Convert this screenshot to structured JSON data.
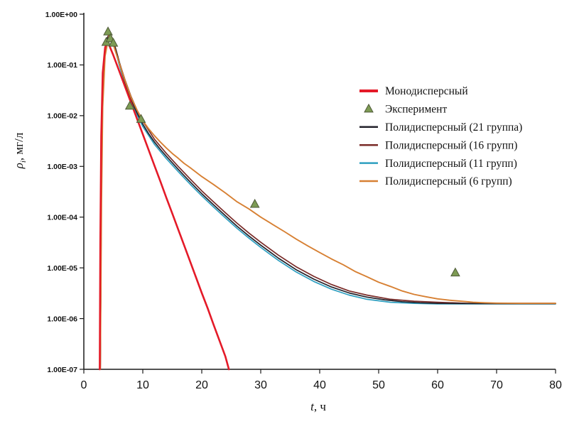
{
  "figure": {
    "background": "#ffffff"
  },
  "chart_data": {
    "type": "line",
    "title": "",
    "xlabel": {
      "main": "t",
      "sub": "",
      "rest": ", ч"
    },
    "ylabel": {
      "main": "ρ",
      "sub": "i",
      "rest": ", мг/л"
    },
    "xlim": [
      0,
      80
    ],
    "ylog_range": [
      -7,
      0
    ],
    "grid": false,
    "legend_position": "inside-upper-right",
    "axis_color": "#1a1a1a",
    "x_ticks": [
      0,
      10,
      20,
      30,
      40,
      50,
      60,
      70,
      80
    ],
    "y_ticks": [
      {
        "label": "1.00E+00",
        "value": 1
      },
      {
        "label": "1.00E-01",
        "value": 0.1
      },
      {
        "label": "1.00E-02",
        "value": 0.01
      },
      {
        "label": "1.00E-03",
        "value": 0.001
      },
      {
        "label": "1.00E-04",
        "value": 0.0001
      },
      {
        "label": "1.00E-05",
        "value": 1e-05
      },
      {
        "label": "1.00E-06",
        "value": 1e-06
      },
      {
        "label": "1.00E-07",
        "value": 1e-07
      }
    ],
    "series": [
      {
        "id": "poly11",
        "name": "Полидисперсный (11 групп)",
        "color": "#2e9fc0",
        "width": 1.7,
        "points": [
          [
            2.8,
            1e-07
          ],
          [
            2.95,
            0.00013
          ],
          [
            3.1,
            0.009
          ],
          [
            3.4,
            0.095
          ],
          [
            3.8,
            0.29
          ],
          [
            4.4,
            0.41
          ],
          [
            4.9,
            0.3
          ],
          [
            5.4,
            0.19
          ],
          [
            6,
            0.1
          ],
          [
            7,
            0.041
          ],
          [
            8,
            0.019
          ],
          [
            9,
            0.0105
          ],
          [
            10,
            0.0061
          ],
          [
            12,
            0.0027
          ],
          [
            14,
            0.00142
          ],
          [
            16,
            0.00079
          ],
          [
            18,
            0.00045
          ],
          [
            20,
            0.000262
          ],
          [
            22,
            0.000158
          ],
          [
            24,
            9.7e-05
          ],
          [
            26,
            6e-05
          ],
          [
            28,
            3.85e-05
          ],
          [
            30,
            2.53e-05
          ],
          [
            33,
            1.4e-05
          ],
          [
            36,
            8.3e-06
          ],
          [
            39,
            5.4e-06
          ],
          [
            42,
            3.8e-06
          ],
          [
            45,
            2.9e-06
          ],
          [
            48,
            2.4e-06
          ],
          [
            52,
            2.1e-06
          ],
          [
            56,
            2e-06
          ],
          [
            60,
            1.95e-06
          ],
          [
            65,
            1.95e-06
          ],
          [
            70,
            1.95e-06
          ],
          [
            75,
            1.95e-06
          ],
          [
            80,
            1.95e-06
          ]
        ]
      },
      {
        "id": "poly16",
        "name": "Полидисперсный (16 групп)",
        "color": "#7a2b28",
        "width": 1.7,
        "points": [
          [
            2.8,
            1e-07
          ],
          [
            2.95,
            0.00017
          ],
          [
            3.1,
            0.011
          ],
          [
            3.4,
            0.11
          ],
          [
            3.8,
            0.31
          ],
          [
            4.4,
            0.43
          ],
          [
            4.9,
            0.32
          ],
          [
            5.4,
            0.21
          ],
          [
            6,
            0.115
          ],
          [
            7,
            0.05
          ],
          [
            8,
            0.024
          ],
          [
            9,
            0.013
          ],
          [
            10,
            0.0078
          ],
          [
            12,
            0.0034
          ],
          [
            14,
            0.0018
          ],
          [
            16,
            0.001
          ],
          [
            18,
            0.00057
          ],
          [
            20,
            0.00033
          ],
          [
            22,
            0.0002
          ],
          [
            24,
            0.000122
          ],
          [
            26,
            7.55e-05
          ],
          [
            28,
            4.85e-05
          ],
          [
            30,
            3.2e-05
          ],
          [
            33,
            1.78e-05
          ],
          [
            36,
            1.05e-05
          ],
          [
            39,
            6.8e-06
          ],
          [
            42,
            4.7e-06
          ],
          [
            45,
            3.5e-06
          ],
          [
            48,
            2.9e-06
          ],
          [
            52,
            2.4e-06
          ],
          [
            56,
            2.2e-06
          ],
          [
            60,
            2.1e-06
          ],
          [
            65,
            2e-06
          ],
          [
            70,
            2e-06
          ],
          [
            75,
            2e-06
          ],
          [
            80,
            2e-06
          ]
        ]
      },
      {
        "id": "poly21",
        "name": "Полидисперсный (21 группа)",
        "color": "#23222b",
        "width": 1.7,
        "points": [
          [
            2.8,
            1e-07
          ],
          [
            2.95,
            0.00015
          ],
          [
            3.1,
            0.01
          ],
          [
            3.4,
            0.1
          ],
          [
            3.8,
            0.3
          ],
          [
            4.4,
            0.42
          ],
          [
            4.8,
            0.33
          ],
          [
            5.2,
            0.235
          ],
          [
            5.7,
            0.155
          ],
          [
            6.2,
            0.095
          ],
          [
            7,
            0.044
          ],
          [
            8,
            0.021
          ],
          [
            9,
            0.0115
          ],
          [
            10,
            0.0068
          ],
          [
            11,
            0.0044
          ],
          [
            12,
            0.003
          ],
          [
            13,
            0.00215
          ],
          [
            14,
            0.00158
          ],
          [
            15,
            0.00118
          ],
          [
            16,
            0.00088
          ],
          [
            17,
            0.00066
          ],
          [
            18,
            0.0005
          ],
          [
            19,
            0.00038
          ],
          [
            20,
            0.00029
          ],
          [
            22,
            0.000175
          ],
          [
            24,
            0.000107
          ],
          [
            26,
            6.6e-05
          ],
          [
            28,
            4.25e-05
          ],
          [
            30,
            2.8e-05
          ],
          [
            33,
            1.55e-05
          ],
          [
            36,
            9.2e-06
          ],
          [
            39,
            6e-06
          ],
          [
            42,
            4.2e-06
          ],
          [
            45,
            3.2e-06
          ],
          [
            48,
            2.65e-06
          ],
          [
            51,
            2.35e-06
          ],
          [
            54,
            2.15e-06
          ],
          [
            57,
            2.05e-06
          ],
          [
            60,
            2e-06
          ],
          [
            65,
            1.98e-06
          ],
          [
            70,
            1.97e-06
          ],
          [
            75,
            1.97e-06
          ],
          [
            80,
            1.97e-06
          ]
        ]
      },
      {
        "id": "poly6",
        "name": "Полидисперсный (6 групп)",
        "color": "#d78033",
        "width": 1.9,
        "points": [
          [
            2.8,
            1e-07
          ],
          [
            3.0,
            0.0002
          ],
          [
            3.2,
            0.015
          ],
          [
            3.6,
            0.15
          ],
          [
            4.3,
            0.4
          ],
          [
            4.8,
            0.3
          ],
          [
            5.4,
            0.18
          ],
          [
            6,
            0.11
          ],
          [
            7,
            0.048
          ],
          [
            8,
            0.023
          ],
          [
            9,
            0.013
          ],
          [
            10,
            0.008
          ],
          [
            11,
            0.0055
          ],
          [
            12,
            0.004
          ],
          [
            13,
            0.003
          ],
          [
            14,
            0.0023
          ],
          [
            15,
            0.0018
          ],
          [
            16,
            0.00145
          ],
          [
            17,
            0.00115
          ],
          [
            18,
            0.00095
          ],
          [
            20,
            0.00063
          ],
          [
            22,
            0.00044
          ],
          [
            24,
            0.0003
          ],
          [
            26,
            0.0002
          ],
          [
            28,
            0.000145
          ],
          [
            30,
            0.0001
          ],
          [
            32,
            7.2e-05
          ],
          [
            34,
            5.2e-05
          ],
          [
            36,
            3.7e-05
          ],
          [
            38,
            2.7e-05
          ],
          [
            40,
            2e-05
          ],
          [
            42,
            1.5e-05
          ],
          [
            44,
            1.15e-05
          ],
          [
            46,
            8.5e-06
          ],
          [
            48,
            6.7e-06
          ],
          [
            50,
            5.2e-06
          ],
          [
            52,
            4.3e-06
          ],
          [
            54,
            3.5e-06
          ],
          [
            56,
            3e-06
          ],
          [
            58,
            2.7e-06
          ],
          [
            60,
            2.45e-06
          ],
          [
            62,
            2.3e-06
          ],
          [
            64,
            2.2e-06
          ],
          [
            66,
            2.1e-06
          ],
          [
            68,
            2.05e-06
          ],
          [
            70,
            2.02e-06
          ],
          [
            74,
            2e-06
          ],
          [
            78,
            2e-06
          ],
          [
            80,
            2e-06
          ]
        ]
      },
      {
        "id": "mono",
        "name": "Монодисперсный",
        "color": "#e41a28",
        "width": 2.6,
        "points": [
          [
            2.7,
            1e-07
          ],
          [
            2.8,
            3e-05
          ],
          [
            2.95,
            0.004
          ],
          [
            3.2,
            0.07
          ],
          [
            3.6,
            0.22
          ],
          [
            4.0,
            0.285
          ],
          [
            4.4,
            0.23
          ],
          [
            5,
            0.155
          ],
          [
            6,
            0.076
          ],
          [
            7,
            0.037
          ],
          [
            8,
            0.018
          ],
          [
            9,
            0.0088
          ],
          [
            10,
            0.0043
          ],
          [
            11,
            0.0021
          ],
          [
            12,
            0.00102
          ],
          [
            13,
            0.0005
          ],
          [
            14,
            0.00024
          ],
          [
            15,
            0.000118
          ],
          [
            16,
            5.75e-05
          ],
          [
            17,
            2.8e-05
          ],
          [
            18,
            1.36e-05
          ],
          [
            19,
            6.6e-06
          ],
          [
            20,
            3.2e-06
          ],
          [
            21,
            1.6e-06
          ],
          [
            22,
            7.6e-07
          ],
          [
            23,
            3.7e-07
          ],
          [
            24,
            1.8e-07
          ],
          [
            24.6,
            1e-07
          ]
        ]
      }
    ],
    "scatter": {
      "id": "experiment",
      "name": "Эксперимент",
      "color": "#7d9b54",
      "edge_color": "#4f5a38",
      "points": [
        [
          3.8,
          0.28
        ],
        [
          4.1,
          0.45
        ],
        [
          4.5,
          0.33
        ],
        [
          5.0,
          0.27
        ],
        [
          7.8,
          0.0155
        ],
        [
          9.7,
          0.0085
        ],
        [
          29,
          0.00018
        ],
        [
          63,
          8e-06
        ]
      ]
    },
    "legend": [
      {
        "marker": "line",
        "color": "#e41a28",
        "label": "Монодисперсный",
        "thick": true
      },
      {
        "marker": "triangle",
        "color": "#7d9b54",
        "edge_color": "#4f5a38",
        "label": "Эксперимент"
      },
      {
        "marker": "line",
        "color": "#23222b",
        "label": "Полидисперсный (21 группа)"
      },
      {
        "marker": "line",
        "color": "#7a2b28",
        "label": "Полидисперсный (16 групп)"
      },
      {
        "marker": "line",
        "color": "#2e9fc0",
        "label": "Полидисперсный (11 групп)"
      },
      {
        "marker": "line",
        "color": "#d78033",
        "label": "Полидисперсный (6 групп)"
      }
    ]
  }
}
